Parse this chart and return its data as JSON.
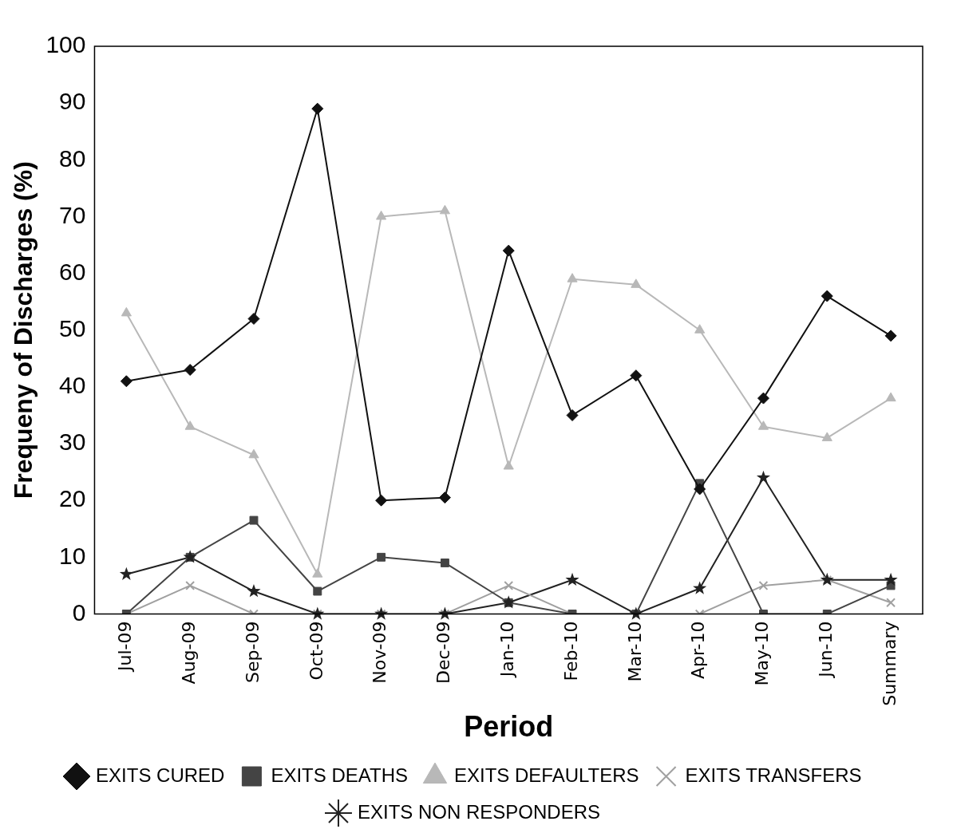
{
  "chart_data": {
    "type": "line",
    "xlabel": "Period",
    "ylabel": "Frequeny of Discharges (%)",
    "categories": [
      "Jul-09",
      "Aug-09",
      "Sep-09",
      "Oct-09",
      "Nov-09",
      "Dec-09",
      "Jan-10",
      "Feb-10",
      "Mar-10",
      "Apr-10",
      "May-10",
      "Jun-10",
      "Summary"
    ],
    "ylim": [
      0,
      100
    ],
    "yticks": [
      0,
      10,
      20,
      30,
      40,
      50,
      60,
      70,
      80,
      90,
      100
    ],
    "grid": false,
    "legend": "bottom",
    "series": [
      {
        "name": "EXITS CURED",
        "color": "#111111",
        "marker": "diamond",
        "values": [
          41,
          43,
          52,
          89,
          20,
          20.5,
          64,
          35,
          42,
          22,
          38,
          56,
          49
        ]
      },
      {
        "name": "EXITS DEATHS",
        "color": "#444444",
        "marker": "square",
        "values": [
          0,
          10,
          16.5,
          4,
          10,
          9,
          2,
          0,
          0,
          23,
          0,
          0,
          5
        ]
      },
      {
        "name": "EXITS DEFAULTERS",
        "color": "#b8b8b8",
        "marker": "triangle",
        "values": [
          53,
          33,
          28,
          7,
          70,
          71,
          26,
          59,
          58,
          50,
          33,
          31,
          38
        ]
      },
      {
        "name": "EXITS TRANSFERS",
        "color": "#a0a0a0",
        "marker": "cross",
        "values": [
          0,
          5,
          0,
          0,
          0,
          0,
          5,
          0,
          0,
          0,
          5,
          6,
          2
        ]
      },
      {
        "name": "EXITS NON RESPONDERS",
        "color": "#222222",
        "marker": "star",
        "values": [
          7,
          10,
          4,
          0,
          0,
          0,
          2,
          6,
          0,
          4.5,
          24,
          6,
          6
        ]
      }
    ]
  }
}
